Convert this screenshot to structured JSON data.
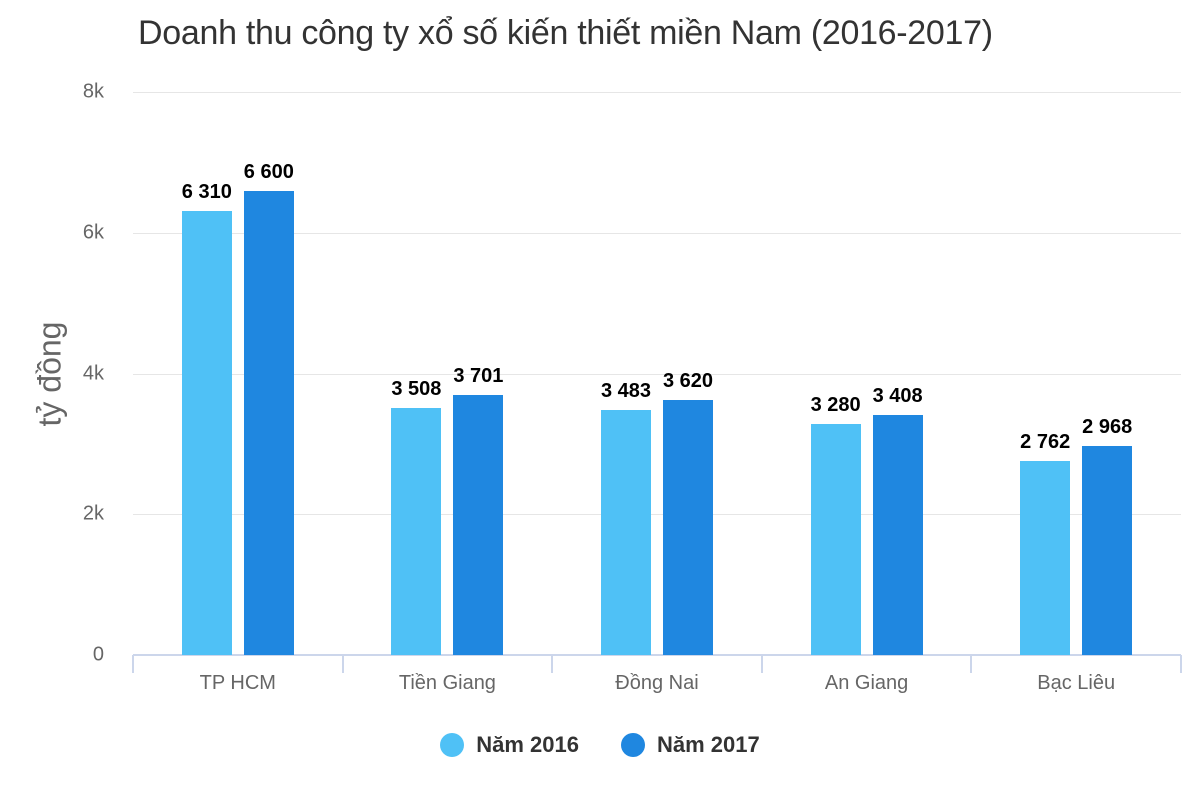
{
  "chart_data": {
    "type": "bar",
    "title": "Doanh thu công ty xổ số kiến thiết miền Nam (2016-2017)",
    "xlabel": "",
    "ylabel": "tỷ đồng",
    "ylim": [
      0,
      8000
    ],
    "yticks": [
      "0",
      "2k",
      "4k",
      "6k",
      "8k"
    ],
    "grid": true,
    "legend_position": "bottom",
    "categories": [
      "TP HCM",
      "Tiền Giang",
      "Đồng Nai",
      "An Giang",
      "Bạc Liêu"
    ],
    "series": [
      {
        "name": "Năm 2016",
        "color": "#4fc1f6",
        "values": [
          6310,
          3508,
          3483,
          3280,
          2762
        ],
        "labels": [
          "6 310",
          "3 508",
          "3 483",
          "3 280",
          "2 762"
        ]
      },
      {
        "name": "Năm 2017",
        "color": "#1f87e0",
        "values": [
          6600,
          3701,
          3620,
          3408,
          2968
        ],
        "labels": [
          "6 600",
          "3 701",
          "3 620",
          "3 408",
          "2 968"
        ]
      }
    ]
  }
}
